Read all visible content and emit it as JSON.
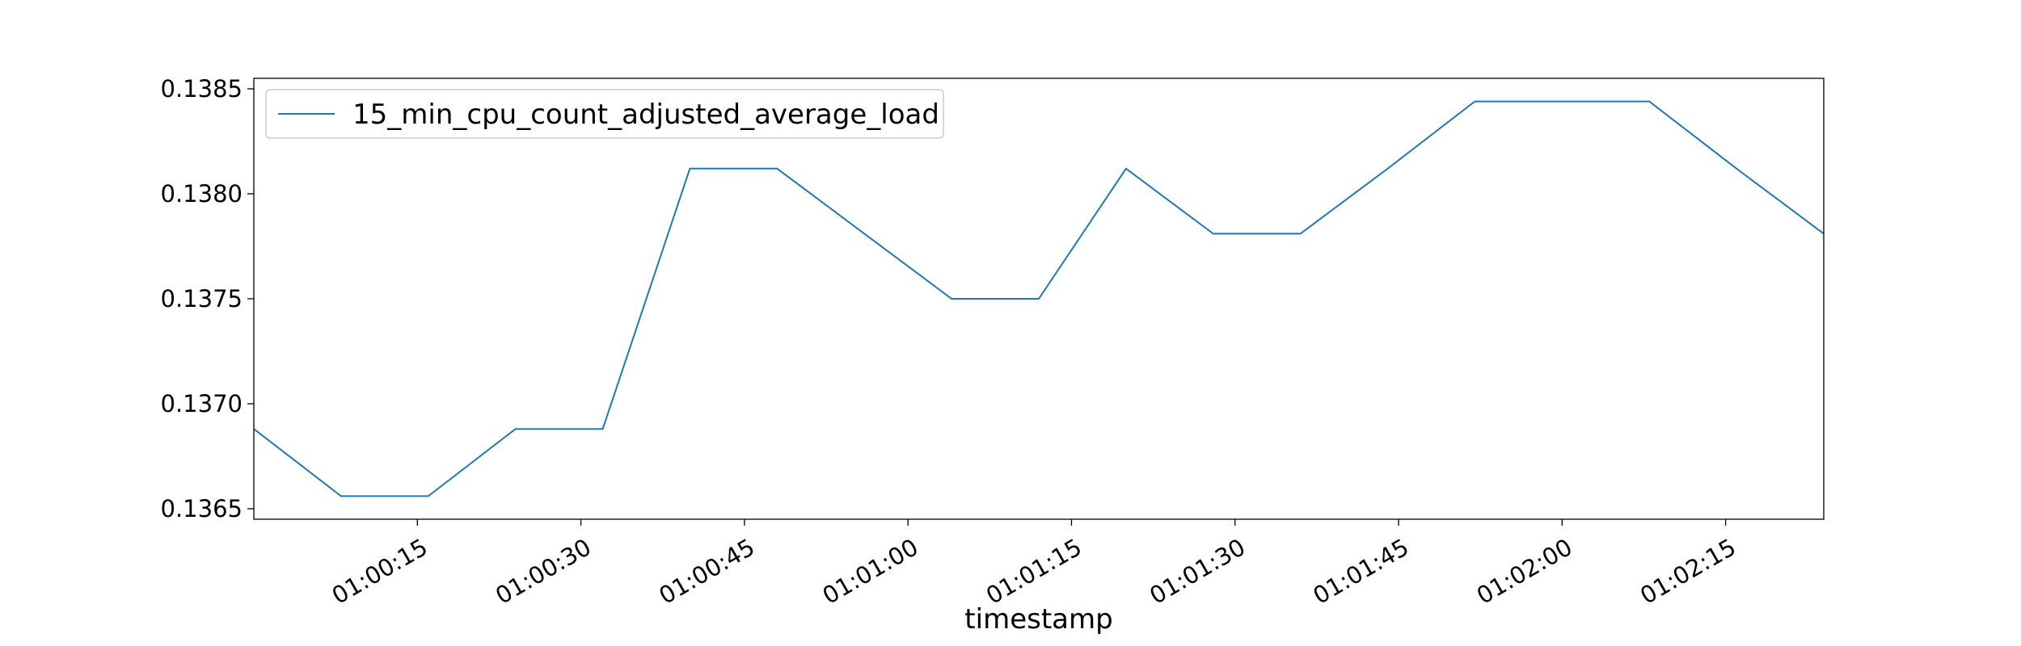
{
  "chart_data": {
    "type": "line",
    "title": "",
    "xlabel": "timestamp",
    "ylabel": "",
    "x": [
      "01:00:00",
      "01:00:08",
      "01:00:16",
      "01:00:24",
      "01:00:32",
      "01:00:40",
      "01:00:48",
      "01:00:56",
      "01:01:04",
      "01:01:12",
      "01:01:20",
      "01:01:28",
      "01:01:36",
      "01:01:44",
      "01:01:52",
      "01:02:00",
      "01:02:08",
      "01:02:16",
      "01:02:24"
    ],
    "x_ticks": [
      "01:00:15",
      "01:00:30",
      "01:00:45",
      "01:01:00",
      "01:01:15",
      "01:01:30",
      "01:01:45",
      "01:02:00",
      "01:02:15"
    ],
    "y_ticks": [
      "0.1365",
      "0.1370",
      "0.1375",
      "0.1380",
      "0.1385"
    ],
    "ylim": [
      0.13645,
      0.13855
    ],
    "series": [
      {
        "name": "15_min_cpu_count_adjusted_average_load",
        "color": "#1f77b4",
        "values": [
          0.13688,
          0.13656,
          0.13656,
          0.13688,
          0.13688,
          0.13812,
          0.13812,
          0.13781,
          0.1375,
          0.1375,
          0.13812,
          0.13781,
          0.13781,
          0.13812,
          0.13844,
          0.13844,
          0.13844,
          0.13812,
          0.13781
        ]
      }
    ],
    "legend_position": "top-left",
    "grid": false
  }
}
